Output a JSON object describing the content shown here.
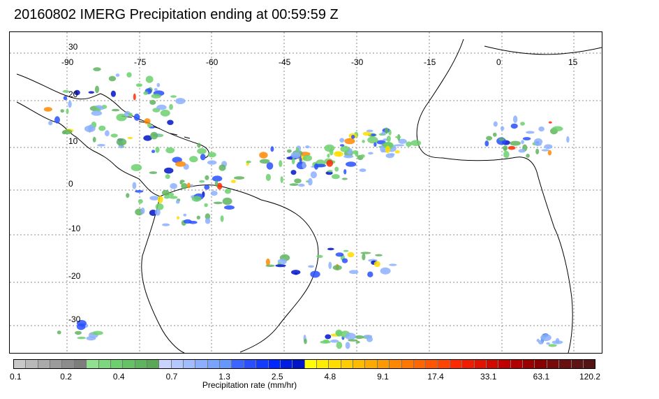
{
  "title": "20160802 IMERG Precipitation ending at 00:59:59 Z",
  "map": {
    "longitude_labels": [
      "-90",
      "-75",
      "-60",
      "-45",
      "-30",
      "-15",
      "0",
      "15"
    ],
    "latitude_labels": [
      "30",
      "20",
      "10",
      "0",
      "-10",
      "-20",
      "-30"
    ],
    "gridlines": "dotted"
  },
  "colorbar": {
    "label": "Precipitation rate (mm/hr)",
    "tick_labels": [
      "0.1",
      "0.2",
      "0.4",
      "0.7",
      "1.3",
      "2.5",
      "4.8",
      "9.1",
      "17.4",
      "33.1",
      "63.1",
      "120.2"
    ],
    "colors": [
      "#c8c8c8",
      "#b9b9b9",
      "#aaaaaa",
      "#9b9b9b",
      "#8c8c8c",
      "#7d7d7d",
      "#8fe08f",
      "#7dd87d",
      "#6cd06c",
      "#66c266",
      "#5fb45f",
      "#58a858",
      "#c8d4ff",
      "#b4c8ff",
      "#a0bcff",
      "#8cb0ff",
      "#78a4ff",
      "#6498ff",
      "#3c64ff",
      "#2850ff",
      "#143cff",
      "#0028ff",
      "#001ee0",
      "#0014c8",
      "#ffff00",
      "#ffee00",
      "#ffdd00",
      "#ffcc00",
      "#ffbb00",
      "#ffaa00",
      "#ff9900",
      "#ff8800",
      "#ff7700",
      "#ff6600",
      "#ff5500",
      "#ff4400",
      "#ff2a00",
      "#f01e00",
      "#e01400",
      "#d00a00",
      "#c00000",
      "#b00000",
      "#9a0000",
      "#880000",
      "#780a0a",
      "#6a1010",
      "#5e1414",
      "#541414"
    ]
  }
}
